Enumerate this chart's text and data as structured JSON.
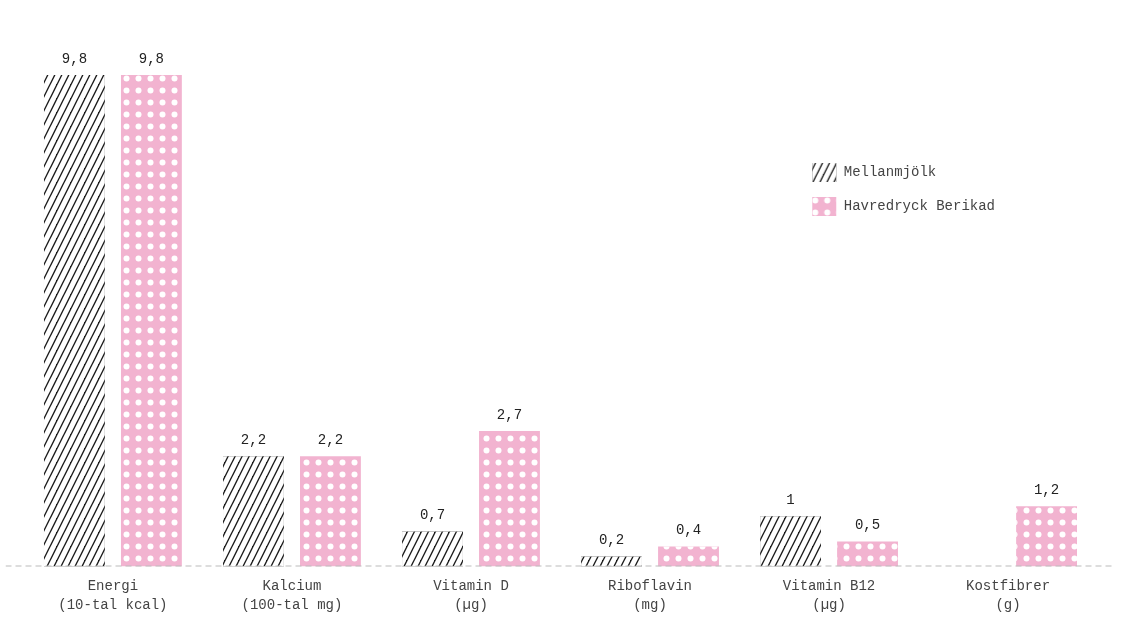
{
  "chart_data": {
    "type": "bar",
    "categories": [
      "Energi\n(10-tal kcal)",
      "Kalcium\n(100-tal mg)",
      "Vitamin D\n(µg)",
      "Riboflavin\n(mg)",
      "Vitamin B12\n(µg)",
      "Kostfibrer\n(g)"
    ],
    "series": [
      {
        "name": "Mellanmjölk",
        "color": "#1a1a1a",
        "values": [
          9.8,
          2.2,
          0.7,
          0.2,
          1,
          null
        ],
        "value_labels": [
          "9,8",
          "2,2",
          "0,7",
          "0,2",
          "1",
          null
        ]
      },
      {
        "name": "Havredryck Berikad",
        "color": "#f2b3d0",
        "values": [
          9.8,
          2.2,
          2.7,
          0.4,
          0.5,
          1.2
        ],
        "value_labels": [
          "9,8",
          "2,2",
          "2,7",
          "0,4",
          "0,5",
          "1,2"
        ]
      }
    ],
    "grid": false,
    "legend": "top right",
    "ref_lines": [
      {
        "axis": "y",
        "value": 0,
        "color": "#bbbbbb",
        "line_style": "dashed"
      }
    ]
  }
}
